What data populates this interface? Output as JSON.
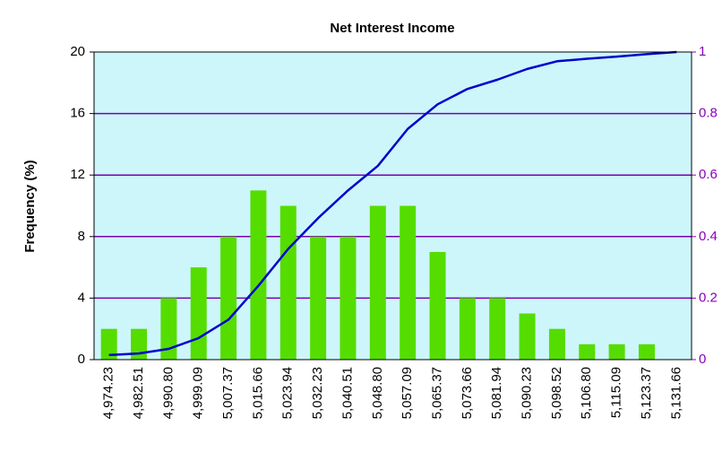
{
  "chart_data": {
    "type": "bar",
    "title": "Net Interest Income",
    "y_label": "Frequency (%)",
    "categories": [
      "4,974.23",
      "4,982.51",
      "4,990.80",
      "4,999.09",
      "5,007.37",
      "5,015.66",
      "5,023.94",
      "5,032.23",
      "5,040.51",
      "5,048.80",
      "5,057.09",
      "5,065.37",
      "5,073.66",
      "5,081.94",
      "5,090.23",
      "5,098.52",
      "5,106.80",
      "5,115.09",
      "5,123.37",
      "5,131.66"
    ],
    "series": [
      {
        "type": "bar",
        "color": "#55dd00",
        "values": [
          2,
          2,
          4,
          6,
          8,
          11,
          10,
          8,
          8,
          10,
          10,
          7,
          4,
          4,
          3,
          2,
          1,
          1,
          1,
          0
        ]
      },
      {
        "type": "line",
        "color": "#0000cc",
        "axis": "y2",
        "values": [
          0.015,
          0.02,
          0.035,
          0.07,
          0.13,
          0.24,
          0.36,
          0.46,
          0.55,
          0.63,
          0.75,
          0.83,
          0.88,
          0.91,
          0.945,
          0.97,
          0.978,
          0.985,
          0.993,
          1.0
        ]
      }
    ],
    "ylim": [
      0,
      20
    ],
    "yticks": [
      0,
      4,
      8,
      12,
      16,
      20
    ],
    "y2lim": [
      0,
      1
    ],
    "y2ticks": [
      0,
      0.2,
      0.4,
      0.6,
      0.8,
      1
    ],
    "grid": true,
    "background": "#cdf6fb",
    "grid_color": "#7a00b0",
    "y2_color": "#8800bb"
  }
}
